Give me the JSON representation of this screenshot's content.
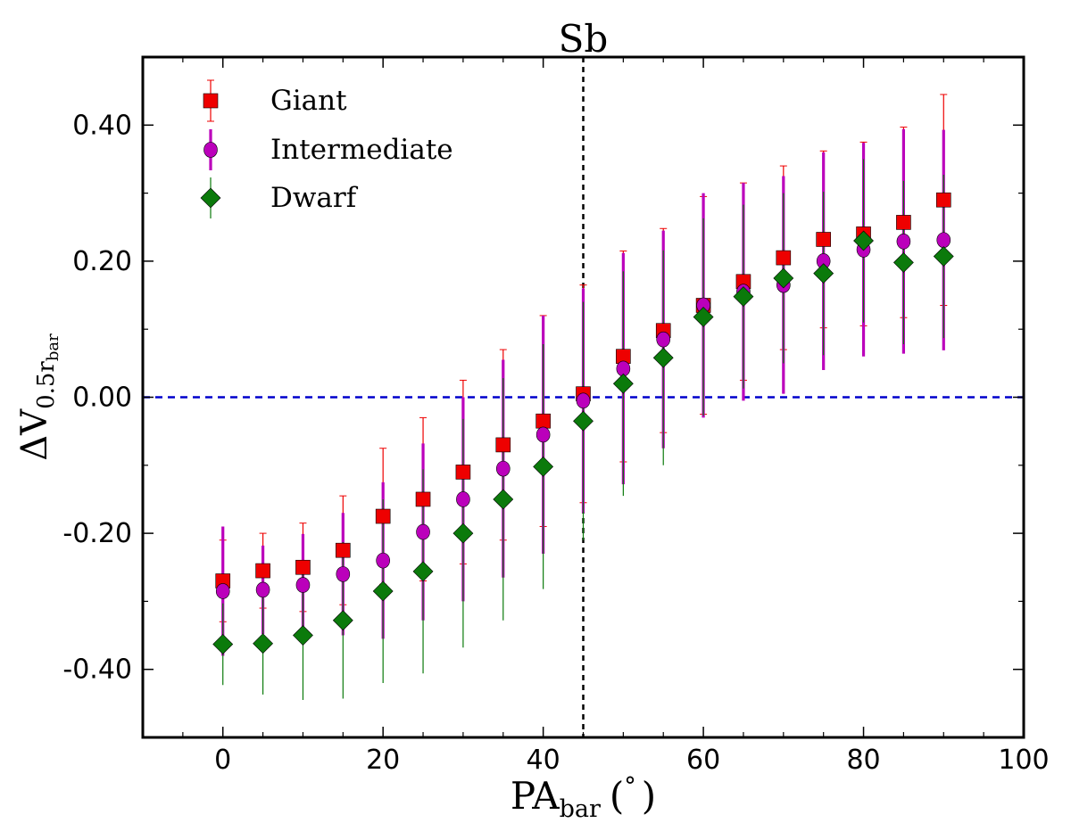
{
  "chart_data": {
    "type": "scatter",
    "title": "Sb",
    "xlabel": {
      "main": "PA",
      "sub": "bar",
      "unit_open": "(",
      "unit": "°",
      "unit_close": ")"
    },
    "ylabel": {
      "main": "ΔV",
      "sub1": "0.5r",
      "sub2": "bar"
    },
    "xlim": [
      -10,
      100
    ],
    "ylim": [
      -0.5,
      0.5
    ],
    "xticks": [
      0,
      20,
      40,
      60,
      80,
      100
    ],
    "yticks": [
      -0.4,
      -0.2,
      0.0,
      0.2,
      0.4
    ],
    "xtick_labels": [
      "0",
      "20",
      "40",
      "60",
      "80",
      "100"
    ],
    "ytick_labels": [
      "-0.40",
      "-0.20",
      "0.00",
      "0.20",
      "0.40"
    ],
    "vline": {
      "x": 45,
      "style": "dashed",
      "color": "#000000"
    },
    "hline": {
      "y": 0.0,
      "style": "dashed",
      "color": "#0000cc"
    },
    "legend_position": "top-left",
    "series": [
      {
        "name": "Giant",
        "marker": "square",
        "color": "#ee0000",
        "x": [
          0,
          5,
          10,
          15,
          20,
          25,
          30,
          35,
          40,
          45,
          50,
          55,
          60,
          65,
          70,
          75,
          80,
          85,
          90
        ],
        "y": [
          -0.27,
          -0.255,
          -0.25,
          -0.225,
          -0.175,
          -0.15,
          -0.11,
          -0.07,
          -0.035,
          0.005,
          0.06,
          0.098,
          0.135,
          0.17,
          0.205,
          0.232,
          0.24,
          0.257,
          0.29
        ],
        "err": [
          0.06,
          0.055,
          0.065,
          0.08,
          0.1,
          0.12,
          0.135,
          0.14,
          0.155,
          0.16,
          0.155,
          0.15,
          0.16,
          0.145,
          0.135,
          0.13,
          0.135,
          0.14,
          0.155
        ]
      },
      {
        "name": "Intermediate",
        "marker": "circle",
        "color": "#bb00bb",
        "x": [
          0,
          5,
          10,
          15,
          20,
          25,
          30,
          35,
          40,
          45,
          50,
          55,
          60,
          65,
          70,
          75,
          80,
          85,
          90
        ],
        "y": [
          -0.285,
          -0.283,
          -0.276,
          -0.26,
          -0.24,
          -0.198,
          -0.15,
          -0.105,
          -0.055,
          -0.005,
          0.042,
          0.085,
          0.135,
          0.155,
          0.165,
          0.2,
          0.217,
          0.229,
          0.231
        ],
        "err": [
          0.095,
          0.065,
          0.075,
          0.09,
          0.115,
          0.13,
          0.15,
          0.16,
          0.175,
          0.165,
          0.17,
          0.16,
          0.165,
          0.16,
          0.16,
          0.16,
          0.157,
          0.165,
          0.162
        ]
      },
      {
        "name": "Dwarf",
        "marker": "diamond",
        "color": "#0b7a0b",
        "x": [
          0,
          5,
          10,
          15,
          20,
          25,
          30,
          35,
          40,
          45,
          50,
          55,
          60,
          65,
          70,
          75,
          80,
          85,
          90
        ],
        "y": [
          -0.363,
          -0.362,
          -0.35,
          -0.328,
          -0.285,
          -0.256,
          -0.2,
          -0.15,
          -0.102,
          -0.035,
          0.02,
          0.058,
          0.118,
          0.148,
          0.175,
          0.182,
          0.23,
          0.198,
          0.207
        ],
        "err": [
          0.06,
          0.075,
          0.095,
          0.115,
          0.135,
          0.15,
          0.168,
          0.178,
          0.18,
          0.175,
          0.165,
          0.158,
          0.145,
          0.135,
          0.125,
          0.12,
          0.12,
          0.12,
          0.12
        ]
      }
    ]
  }
}
